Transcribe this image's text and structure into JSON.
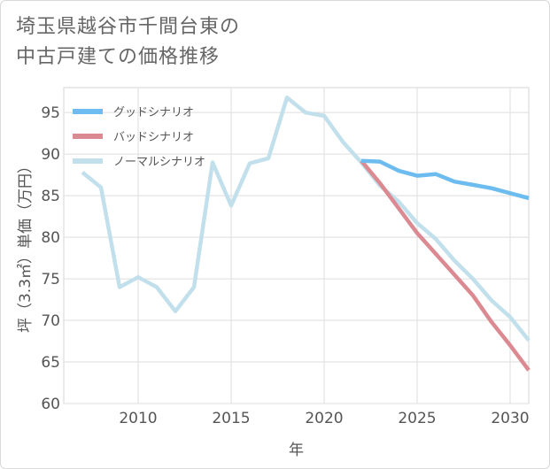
{
  "title_line1": "埼玉県越谷市千間台東の",
  "title_line2": "中古戸建ての価格推移",
  "chart_data": {
    "type": "line",
    "xlabel": "年",
    "ylabel": "坪（3.3㎡）単価（万円）",
    "xlim": [
      2006,
      2031
    ],
    "ylim": [
      60,
      98
    ],
    "x_ticks": [
      2010,
      2015,
      2020,
      2025,
      2030
    ],
    "y_ticks": [
      60,
      65,
      70,
      75,
      80,
      85,
      90,
      95
    ],
    "legend_position": "top-left",
    "series": [
      {
        "name": "グッドシナリオ",
        "color": "#6cbcef",
        "x": [
          2022,
          2023,
          2024,
          2025,
          2026,
          2027,
          2028,
          2029,
          2030,
          2031
        ],
        "values": [
          89.2,
          89.1,
          88.0,
          87.4,
          87.6,
          86.7,
          86.3,
          85.9,
          85.3,
          84.7
        ]
      },
      {
        "name": "バッドシナリオ",
        "color": "#dc8a92",
        "x": [
          2022,
          2023,
          2024,
          2025,
          2026,
          2027,
          2028,
          2029,
          2030,
          2031
        ],
        "values": [
          89.2,
          86.5,
          83.5,
          80.5,
          78.0,
          75.5,
          73.0,
          69.8,
          67.0,
          64.0
        ]
      },
      {
        "name": "ノーマルシナリオ",
        "color": "#c2e0ec",
        "x": [
          2007,
          2008,
          2009,
          2010,
          2011,
          2012,
          2013,
          2014,
          2015,
          2016,
          2017,
          2018,
          2019,
          2020,
          2021,
          2022,
          2023,
          2024,
          2025,
          2026,
          2027,
          2028,
          2029,
          2030,
          2031
        ],
        "values": [
          87.8,
          86.0,
          74.0,
          75.2,
          74.0,
          71.1,
          74.0,
          89.0,
          83.8,
          88.9,
          89.5,
          96.8,
          95.0,
          94.6,
          91.5,
          89.0,
          86.2,
          84.3,
          81.7,
          79.8,
          77.2,
          75.0,
          72.4,
          70.4,
          67.6
        ]
      }
    ]
  }
}
